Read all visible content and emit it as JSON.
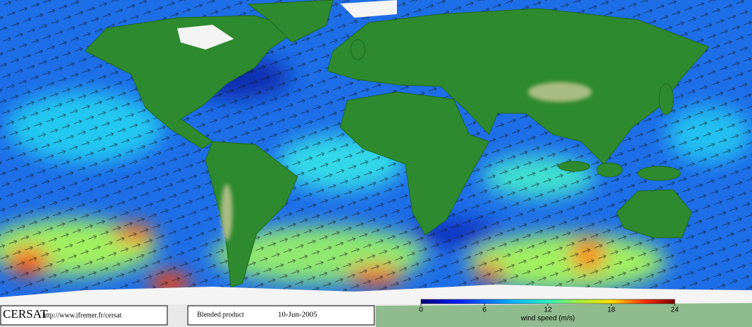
{
  "footer": {
    "logo": "CERSAT",
    "url": "http://www.ifremer.fr/cersat",
    "product": "Blended product",
    "date": "10-Jun-2005"
  },
  "colorbar": {
    "label": "wind speed (m/s)",
    "lim": [
      0,
      24
    ],
    "ticks": [
      0,
      6,
      12,
      18,
      24
    ]
  }
}
